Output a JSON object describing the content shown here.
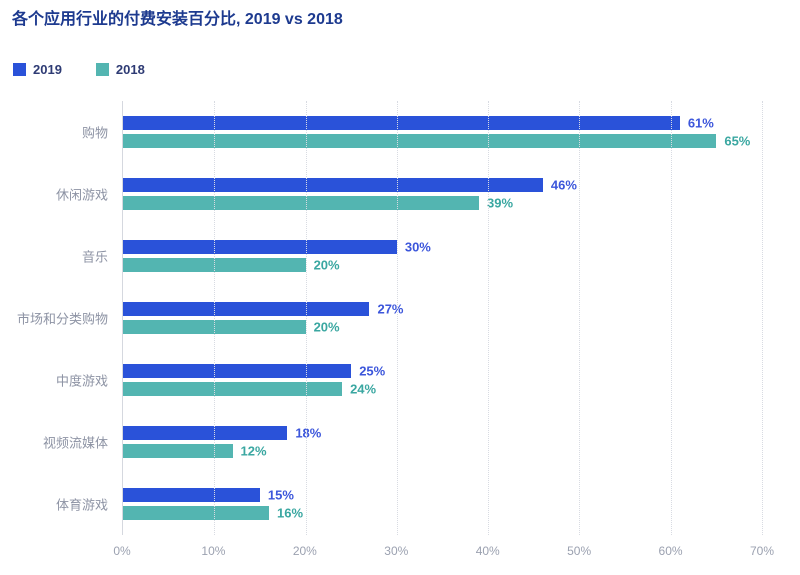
{
  "page": {
    "background": "#ffffff"
  },
  "title": "各个应用行业的付费安装百分比, 2019 vs 2018",
  "legend": {
    "position": "top-left",
    "items": [
      {
        "label": "2019",
        "color": "#2a52d9"
      },
      {
        "label": "2018",
        "color": "#53b5b1"
      }
    ]
  },
  "chart_data": {
    "type": "bar",
    "orientation": "horizontal",
    "title": "各个应用行业的付费安装百分比, 2019 vs 2018",
    "categories": [
      "购物",
      "休闲游戏",
      "音乐",
      "市场和分类购物",
      "中度游戏",
      "视频流媒体",
      "体育游戏"
    ],
    "series": [
      {
        "name": "2019",
        "color": "#2a52d9",
        "value_color": "#3c56db",
        "values": [
          61,
          46,
          30,
          27,
          25,
          18,
          15
        ]
      },
      {
        "name": "2018",
        "color": "#53b5b1",
        "value_color": "#3aa7a1",
        "values": [
          65,
          39,
          20,
          20,
          24,
          12,
          16
        ]
      }
    ],
    "value_suffix": "%",
    "xlabel": "",
    "ylabel": "",
    "xlim": [
      0,
      70
    ],
    "x_ticks": [
      "0%",
      "10%",
      "20%",
      "30%",
      "40%",
      "50%",
      "60%",
      "70%"
    ],
    "grid": "vertical-dotted",
    "legend_position": "top-left"
  }
}
